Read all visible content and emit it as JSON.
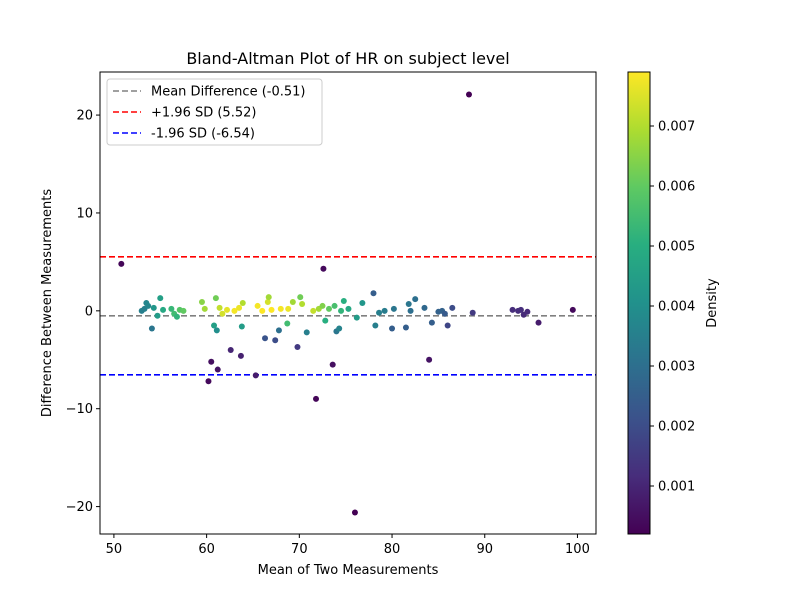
{
  "chart_data": {
    "type": "scatter",
    "title": "Bland-Altman Plot of HR on subject level",
    "xlabel": "Mean of Two Measurements",
    "ylabel": "Difference Between Measurements",
    "xlim": [
      48.5,
      102
    ],
    "ylim": [
      -22.8,
      24.4
    ],
    "xticks": [
      50,
      60,
      70,
      80,
      90,
      100
    ],
    "yticks": [
      -20,
      -10,
      0,
      10,
      20
    ],
    "ytick_labels": [
      "−20",
      "−10",
      "0",
      "10",
      "20"
    ],
    "grid": false,
    "legend_position": "upper-left",
    "reference_lines": [
      {
        "label": "Mean Difference (-0.51)",
        "y": -0.51,
        "color": "#808080",
        "dash": "dashed"
      },
      {
        "label": "+1.96 SD (5.52)",
        "y": 5.52,
        "color": "#ff0000",
        "dash": "dashed"
      },
      {
        "label": "-1.96 SD (-6.54)",
        "y": -6.54,
        "color": "#0000ff",
        "dash": "dashed"
      }
    ],
    "colorbar": {
      "label": "Density",
      "colormap": "viridis",
      "range": [
        0.0002,
        0.0079
      ],
      "ticks": [
        0.001,
        0.002,
        0.003,
        0.004,
        0.005,
        0.006,
        0.007
      ],
      "tick_labels": [
        "0.001",
        "0.002",
        "0.003",
        "0.004",
        "0.005",
        "0.006",
        "0.007"
      ]
    },
    "points": [
      {
        "x": 50.8,
        "y": 4.8,
        "density": 0.0003
      },
      {
        "x": 53.0,
        "y": 0.0,
        "density": 0.0035
      },
      {
        "x": 53.3,
        "y": 0.2,
        "density": 0.0035
      },
      {
        "x": 53.5,
        "y": 0.8,
        "density": 0.0037
      },
      {
        "x": 53.7,
        "y": 0.5,
        "density": 0.0037
      },
      {
        "x": 54.1,
        "y": -1.8,
        "density": 0.0032
      },
      {
        "x": 54.3,
        "y": 0.3,
        "density": 0.0042
      },
      {
        "x": 54.7,
        "y": -0.5,
        "density": 0.0044
      },
      {
        "x": 55.0,
        "y": 1.3,
        "density": 0.0045
      },
      {
        "x": 55.3,
        "y": 0.1,
        "density": 0.0048
      },
      {
        "x": 56.2,
        "y": 0.2,
        "density": 0.0053
      },
      {
        "x": 56.5,
        "y": -0.3,
        "density": 0.0055
      },
      {
        "x": 56.8,
        "y": -0.6,
        "density": 0.0052
      },
      {
        "x": 57.1,
        "y": 0.1,
        "density": 0.0058
      },
      {
        "x": 57.5,
        "y": 0.0,
        "density": 0.006
      },
      {
        "x": 59.5,
        "y": 0.9,
        "density": 0.0065
      },
      {
        "x": 59.8,
        "y": 0.2,
        "density": 0.0068
      },
      {
        "x": 60.2,
        "y": -7.2,
        "density": 0.0004
      },
      {
        "x": 60.5,
        "y": -5.2,
        "density": 0.0005
      },
      {
        "x": 60.8,
        "y": -1.5,
        "density": 0.0045
      },
      {
        "x": 61.0,
        "y": 1.3,
        "density": 0.0062
      },
      {
        "x": 61.1,
        "y": -2.0,
        "density": 0.004
      },
      {
        "x": 61.2,
        "y": -6.0,
        "density": 0.0006
      },
      {
        "x": 61.4,
        "y": 0.3,
        "density": 0.0072
      },
      {
        "x": 61.7,
        "y": -0.3,
        "density": 0.0074
      },
      {
        "x": 62.2,
        "y": 0.1,
        "density": 0.0076
      },
      {
        "x": 62.6,
        "y": -4.0,
        "density": 0.001
      },
      {
        "x": 63.0,
        "y": 0.0,
        "density": 0.0078
      },
      {
        "x": 63.5,
        "y": 0.3,
        "density": 0.0077
      },
      {
        "x": 63.7,
        "y": -4.6,
        "density": 0.0009
      },
      {
        "x": 63.8,
        "y": -1.6,
        "density": 0.0044
      },
      {
        "x": 63.9,
        "y": 0.8,
        "density": 0.007
      },
      {
        "x": 65.3,
        "y": -6.6,
        "density": 0.0008
      },
      {
        "x": 65.5,
        "y": 0.5,
        "density": 0.0078
      },
      {
        "x": 66.0,
        "y": 0.0,
        "density": 0.0079
      },
      {
        "x": 66.3,
        "y": -2.8,
        "density": 0.0022
      },
      {
        "x": 66.6,
        "y": 0.9,
        "density": 0.0074
      },
      {
        "x": 66.7,
        "y": 1.4,
        "density": 0.0068
      },
      {
        "x": 67.0,
        "y": 0.1,
        "density": 0.0079
      },
      {
        "x": 67.4,
        "y": -3.0,
        "density": 0.002
      },
      {
        "x": 67.8,
        "y": -2.0,
        "density": 0.003
      },
      {
        "x": 68.0,
        "y": 0.2,
        "density": 0.0078
      },
      {
        "x": 68.7,
        "y": -1.3,
        "density": 0.0055
      },
      {
        "x": 68.8,
        "y": 0.2,
        "density": 0.0077
      },
      {
        "x": 69.3,
        "y": 0.9,
        "density": 0.0068
      },
      {
        "x": 69.8,
        "y": -3.7,
        "density": 0.0015
      },
      {
        "x": 70.1,
        "y": 1.4,
        "density": 0.0062
      },
      {
        "x": 70.3,
        "y": 0.7,
        "density": 0.007
      },
      {
        "x": 70.8,
        "y": -2.2,
        "density": 0.0035
      },
      {
        "x": 71.5,
        "y": 0.0,
        "density": 0.0072
      },
      {
        "x": 71.8,
        "y": -9.0,
        "density": 0.0003
      },
      {
        "x": 72.1,
        "y": 0.2,
        "density": 0.0068
      },
      {
        "x": 72.5,
        "y": 0.5,
        "density": 0.0064
      },
      {
        "x": 72.6,
        "y": 4.3,
        "density": 0.0004
      },
      {
        "x": 72.8,
        "y": -1.0,
        "density": 0.005
      },
      {
        "x": 73.2,
        "y": 0.2,
        "density": 0.006
      },
      {
        "x": 73.6,
        "y": -5.5,
        "density": 0.0005
      },
      {
        "x": 73.8,
        "y": 0.5,
        "density": 0.0056
      },
      {
        "x": 74.0,
        "y": -2.1,
        "density": 0.0032
      },
      {
        "x": 74.3,
        "y": -1.8,
        "density": 0.0036
      },
      {
        "x": 74.5,
        "y": 0.0,
        "density": 0.0052
      },
      {
        "x": 74.8,
        "y": 1.0,
        "density": 0.005
      },
      {
        "x": 75.3,
        "y": 0.2,
        "density": 0.0048
      },
      {
        "x": 76.0,
        "y": -20.6,
        "density": 0.0002
      },
      {
        "x": 76.2,
        "y": -0.7,
        "density": 0.0044
      },
      {
        "x": 76.8,
        "y": 0.8,
        "density": 0.0042
      },
      {
        "x": 78.0,
        "y": 1.8,
        "density": 0.0025
      },
      {
        "x": 78.2,
        "y": -1.5,
        "density": 0.0035
      },
      {
        "x": 78.6,
        "y": -0.2,
        "density": 0.0035
      },
      {
        "x": 79.2,
        "y": 0.0,
        "density": 0.0034
      },
      {
        "x": 80.0,
        "y": -1.8,
        "density": 0.0025
      },
      {
        "x": 80.2,
        "y": 0.2,
        "density": 0.0032
      },
      {
        "x": 81.5,
        "y": -1.7,
        "density": 0.0025
      },
      {
        "x": 81.8,
        "y": 0.7,
        "density": 0.0032
      },
      {
        "x": 82.0,
        "y": 0.0,
        "density": 0.003
      },
      {
        "x": 82.5,
        "y": 1.2,
        "density": 0.003
      },
      {
        "x": 83.5,
        "y": 0.3,
        "density": 0.0028
      },
      {
        "x": 84.0,
        "y": -5.0,
        "density": 0.0006
      },
      {
        "x": 84.3,
        "y": -1.2,
        "density": 0.0025
      },
      {
        "x": 85.0,
        "y": -0.1,
        "density": 0.0026
      },
      {
        "x": 85.4,
        "y": 0.0,
        "density": 0.0026
      },
      {
        "x": 85.7,
        "y": -0.3,
        "density": 0.0024
      },
      {
        "x": 86.0,
        "y": -1.5,
        "density": 0.0018
      },
      {
        "x": 86.5,
        "y": 0.3,
        "density": 0.002
      },
      {
        "x": 88.3,
        "y": 22.1,
        "density": 0.0002
      },
      {
        "x": 88.7,
        "y": -0.2,
        "density": 0.0015
      },
      {
        "x": 93.0,
        "y": 0.1,
        "density": 0.0012
      },
      {
        "x": 93.6,
        "y": 0.0,
        "density": 0.0012
      },
      {
        "x": 93.9,
        "y": 0.1,
        "density": 0.0012
      },
      {
        "x": 94.2,
        "y": -0.4,
        "density": 0.0011
      },
      {
        "x": 94.6,
        "y": -0.1,
        "density": 0.0011
      },
      {
        "x": 95.8,
        "y": -1.2,
        "density": 0.0008
      },
      {
        "x": 99.5,
        "y": 0.1,
        "density": 0.0004
      }
    ]
  }
}
